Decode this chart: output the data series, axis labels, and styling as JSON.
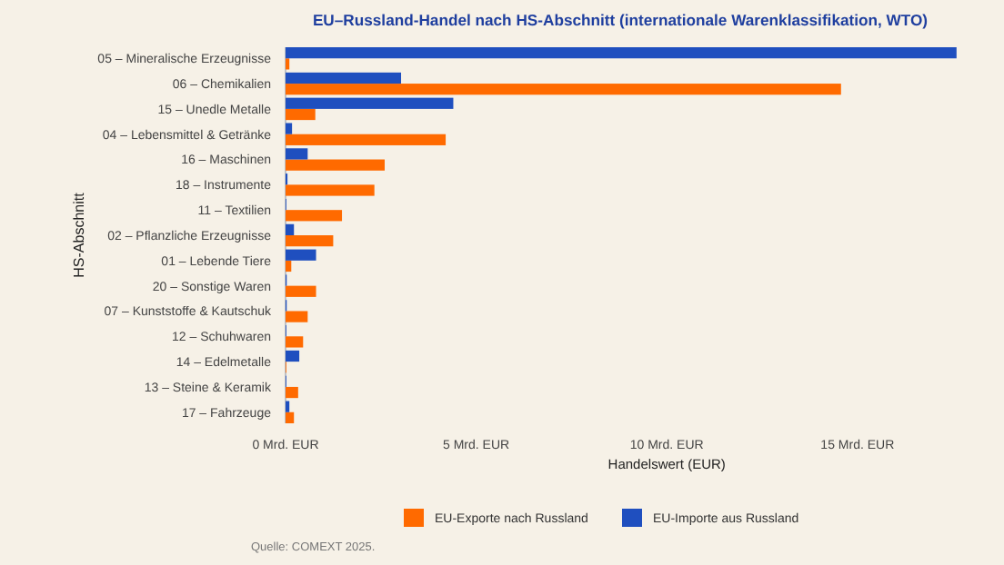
{
  "chart_data": {
    "type": "bar",
    "orientation": "horizontal",
    "title": "EU–Russland-Handel nach HS-Abschnitt (internationale Warenklassifikation, WTO)",
    "xlabel": "Handelswert (EUR)",
    "ylabel": "HS-Abschnitt",
    "categories": [
      "05 – Mineralische Erzeugnisse",
      "06 – Chemikalien",
      "15 – Unedle Metalle",
      "04 – Lebensmittel & Getränke",
      "16 – Maschinen",
      "18 – Instrumente",
      "11 – Textilien",
      "02 – Pflanzliche Erzeugnisse",
      "01 – Lebende Tiere",
      "20 – Sonstige Waren",
      "07 – Kunststoffe & Kautschuk",
      "12 – Schuhwaren",
      "14 – Edelmetalle",
      "13 – Steine & Keramik",
      "17 – Fahrzeuge"
    ],
    "series": [
      {
        "name": "EU-Exporte nach Russland",
        "color": "#ff6a00",
        "values": [
          0.1,
          14.57,
          0.78,
          4.2,
          2.6,
          2.33,
          1.48,
          1.25,
          0.15,
          0.8,
          0.58,
          0.46,
          0.02,
          0.33,
          0.22
        ]
      },
      {
        "name": "EU-Importe aus Russland",
        "color": "#1f4fbf",
        "values": [
          17.6,
          3.03,
          4.4,
          0.17,
          0.58,
          0.05,
          0.02,
          0.22,
          0.8,
          0.03,
          0.03,
          0.02,
          0.36,
          0.02,
          0.1
        ]
      }
    ],
    "xlim": [
      0,
      17.7
    ],
    "xticks": [
      {
        "value": 0,
        "label": "0 Mrd. EUR"
      },
      {
        "value": 5,
        "label": "5 Mrd. EUR"
      },
      {
        "value": 10,
        "label": "10 Mrd. EUR"
      },
      {
        "value": 15,
        "label": "15 Mrd. EUR"
      }
    ],
    "legend": "bottom",
    "annotations": [
      "Quelle: COMEXT 2025."
    ]
  }
}
